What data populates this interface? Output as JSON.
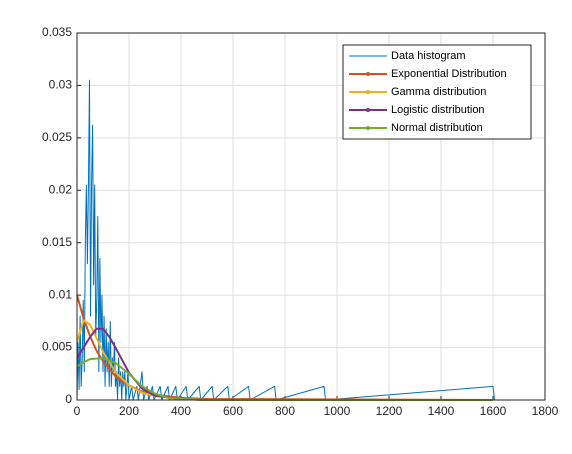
{
  "chart_data": {
    "type": "line",
    "xlim": [
      0,
      1800
    ],
    "xticks": [
      0,
      200,
      400,
      600,
      800,
      1000,
      1200,
      1400,
      1600,
      1800
    ],
    "ylim": [
      0,
      0.035
    ],
    "yticks": [
      0,
      0.005,
      0.01,
      0.015,
      0.02,
      0.025,
      0.03,
      0.035
    ],
    "grid": true,
    "legend": "northeast",
    "series": [
      {
        "name": "Data histogram",
        "color": "#0072bd",
        "x": [
          0,
          4,
          8,
          12,
          16,
          20,
          24,
          28,
          32,
          36,
          40,
          44,
          48,
          52,
          56,
          60,
          64,
          68,
          72,
          76,
          80,
          84,
          88,
          92,
          96,
          100,
          104,
          108,
          112,
          116,
          120,
          124,
          128,
          132,
          136,
          140,
          144,
          148,
          152,
          156,
          160,
          164,
          168,
          172,
          176,
          180,
          184,
          188,
          192,
          196,
          200,
          210,
          216,
          230,
          236,
          250,
          256,
          270,
          276,
          290,
          296,
          320,
          326,
          350,
          356,
          380,
          386,
          420,
          426,
          470,
          476,
          520,
          526,
          580,
          586,
          660,
          666,
          760,
          766,
          950,
          956,
          1600,
          1606
        ],
        "values": [
          0,
          0.0055,
          0.001,
          0.008,
          0.0013,
          0.004,
          0.0095,
          0.0027,
          0.015,
          0.0205,
          0.013,
          0.0205,
          0.0305,
          0.008,
          0.0205,
          0.0262,
          0.011,
          0.0205,
          0.006,
          0.0095,
          0.0175,
          0.0027,
          0.0135,
          0.0055,
          0.01,
          0.0027,
          0.008,
          0.0013,
          0.0068,
          0.0027,
          0.0055,
          0.0013,
          0.0075,
          0.0013,
          0.004,
          0.0027,
          0.0055,
          0.0013,
          0.0027,
          0,
          0.004,
          0.0013,
          0.0027,
          0,
          0.0027,
          0.0013,
          0.0027,
          0,
          0.0013,
          0.0027,
          0,
          0.0013,
          0,
          0.0013,
          0,
          0.0027,
          0,
          0.0013,
          0,
          0.0013,
          0,
          0.0013,
          0,
          0.0013,
          0,
          0.0013,
          0,
          0.0013,
          0,
          0.0013,
          0,
          0.0013,
          0,
          0.0013,
          0,
          0.0013,
          0,
          0.0013,
          0,
          0.0013,
          0,
          0.0013,
          0
        ]
      },
      {
        "name": "Exponential Distribution",
        "color": "#d95319",
        "x": [
          0,
          25,
          50,
          75,
          100,
          150,
          200,
          250,
          300,
          400,
          500,
          1600
        ],
        "values": [
          0.01,
          0.0078,
          0.0061,
          0.0047,
          0.0037,
          0.0022,
          0.0014,
          0.0008,
          0.0005,
          0.0002,
          0.0001,
          0
        ]
      },
      {
        "name": "Gamma distribution",
        "color": "#edb120",
        "x": [
          0,
          25,
          50,
          75,
          100,
          150,
          200,
          250,
          300,
          400,
          500,
          1600
        ],
        "values": [
          0.0055,
          0.0076,
          0.0072,
          0.0059,
          0.0046,
          0.0026,
          0.0014,
          0.0007,
          0.0004,
          0.0001,
          0,
          0
        ]
      },
      {
        "name": "Logistic distribution",
        "color": "#7e2f8e",
        "x": [
          0,
          25,
          50,
          75,
          100,
          125,
          150,
          200,
          250,
          300,
          400,
          500,
          1600
        ],
        "values": [
          0.004,
          0.005,
          0.006,
          0.0068,
          0.0068,
          0.006,
          0.0049,
          0.0026,
          0.0011,
          0.0004,
          0.0001,
          0,
          0
        ]
      },
      {
        "name": "Normal distribution",
        "color": "#77ac30",
        "x": [
          0,
          25,
          50,
          100,
          150,
          200,
          250,
          300,
          350,
          400,
          500,
          1600
        ],
        "values": [
          0.0032,
          0.0036,
          0.0039,
          0.004,
          0.0035,
          0.0025,
          0.0013,
          0.0006,
          0.0002,
          0.0001,
          0,
          0
        ]
      }
    ]
  }
}
